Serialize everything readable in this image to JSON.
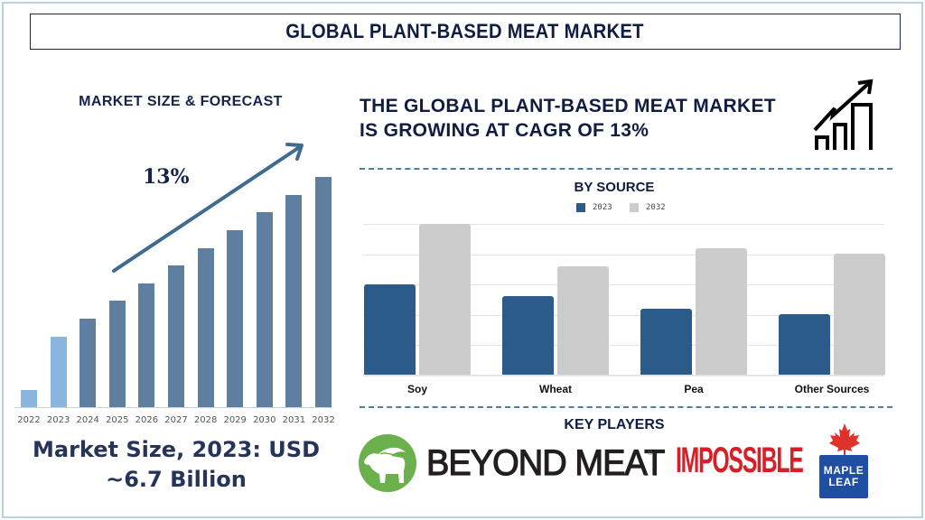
{
  "header": {
    "title": "GLOBAL PLANT-BASED MEAT MARKET"
  },
  "left_panel": {
    "title": "MARKET SIZE & FORECAST",
    "cagr_label": "13%",
    "market_size_line1": "Market Size, 2023: USD",
    "market_size_line2": "~6.7 Billion"
  },
  "right_panel": {
    "headline_line1": "THE GLOBAL PLANT-BASED MEAT MARKET",
    "headline_line2": "IS GROWING AT CAGR OF 13%",
    "growth_icon": "bar-chart-growth-icon",
    "by_source_title": "BY SOURCE",
    "legend": [
      {
        "label": "2023",
        "color": "#2a5b8a"
      },
      {
        "label": "2032",
        "color": "#cccccc"
      }
    ],
    "key_players_title": "KEY PLAYERS",
    "key_players": [
      {
        "name": "BEYOND MEAT",
        "color": "#231f20",
        "logo_color": "#6ab04c"
      },
      {
        "name": "IMPOSSIBLE",
        "color": "#d61f26"
      },
      {
        "name": "MAPLE LEAF",
        "line1": "MAPLE",
        "line2": "LEAF",
        "flag_color": "#1e4fa3",
        "leaf_color": "#e0322b"
      }
    ]
  },
  "chart_data": [
    {
      "type": "bar",
      "title": "MARKET SIZE & FORECAST",
      "categories": [
        "2022",
        "2023",
        "2024",
        "2025",
        "2026",
        "2027",
        "2028",
        "2029",
        "2030",
        "2031",
        "2032"
      ],
      "values": [
        19,
        78,
        98,
        118,
        137,
        157,
        176,
        196,
        216,
        235,
        255
      ],
      "units": "relative bar height (px), unlabeled axis",
      "historical": [
        "2022",
        "2023"
      ],
      "colors": {
        "historical": "#8bb6df",
        "forecast": "#5e7f9f"
      },
      "annotation": "13% CAGR arrow",
      "xlabel": "",
      "ylabel": "",
      "grid": false
    },
    {
      "type": "bar",
      "title": "BY SOURCE",
      "categories": [
        "Soy",
        "Wheat",
        "Pea",
        "Other Sources"
      ],
      "series": [
        {
          "name": "2023",
          "values": [
            3.0,
            2.6,
            2.2,
            2.0
          ],
          "color": "#2a5b8a"
        },
        {
          "name": "2032",
          "values": [
            5.0,
            3.6,
            4.2,
            4.0
          ],
          "color": "#cccccc"
        }
      ],
      "units": "relative (gridline units, axis unlabeled)",
      "ylim": [
        0,
        5
      ],
      "grid": true,
      "legend_position": "top"
    }
  ]
}
